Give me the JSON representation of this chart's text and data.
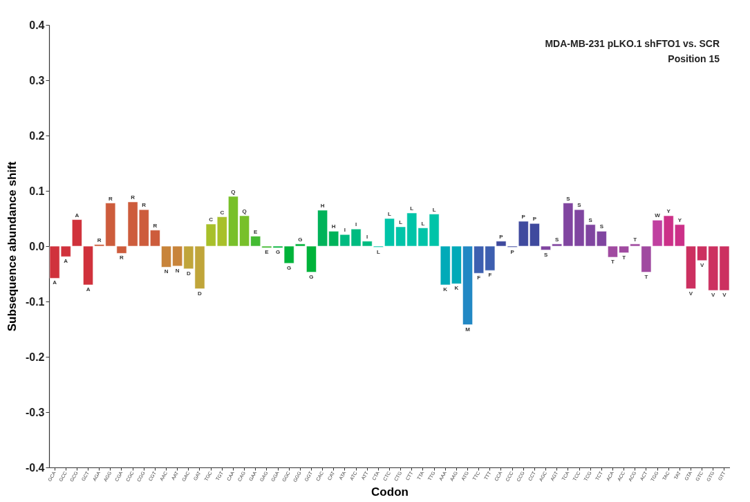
{
  "chart_data": {
    "type": "bar",
    "title": "MDA-MB-231 pLKO.1 shFTO1 vs. SCR",
    "subtitle": "Position 15",
    "xlabel": "Codon",
    "ylabel": "Subsequence abundance shift",
    "categories": [
      "GCA",
      "GCC",
      "GCG",
      "GCT",
      "AGA",
      "AGG",
      "CGA",
      "CGC",
      "CGG",
      "CGT",
      "AAC",
      "AAT",
      "GAC",
      "GAT",
      "TGC",
      "TGT",
      "CAA",
      "CAG",
      "GAA",
      "GAG",
      "GGA",
      "GGC",
      "GGG",
      "GGT",
      "CAC",
      "CAT",
      "ATA",
      "ATC",
      "ATT",
      "CTA",
      "CTC",
      "CTG",
      "CTT",
      "TTA",
      "TTG",
      "AAA",
      "AAG",
      "ATG",
      "TTC",
      "TTT",
      "CCA",
      "CCC",
      "CCG",
      "CCT",
      "AGC",
      "AGT",
      "TCA",
      "TCC",
      "TCG",
      "TCT",
      "ACA",
      "ACC",
      "ACG",
      "ACT",
      "TGG",
      "TAC",
      "TAT",
      "GTA",
      "GTC",
      "GTG",
      "GTT"
    ],
    "values": [
      -0.058,
      -0.019,
      0.048,
      -0.07,
      0.003,
      0.078,
      -0.013,
      0.08,
      0.066,
      0.029,
      -0.038,
      -0.036,
      -0.041,
      -0.077,
      0.04,
      0.053,
      0.09,
      0.055,
      0.018,
      -0.003,
      -0.003,
      -0.031,
      0.004,
      -0.047,
      0.065,
      0.027,
      0.021,
      0.031,
      0.009,
      -0.002,
      0.05,
      0.035,
      0.06,
      0.033,
      0.058,
      -0.07,
      -0.068,
      -0.142,
      -0.049,
      -0.044,
      0.009,
      -0.002,
      0.045,
      0.041,
      -0.007,
      0.004,
      0.078,
      0.066,
      0.039,
      0.027,
      -0.02,
      -0.012,
      0.004,
      -0.047,
      0.047,
      0.055,
      0.039,
      -0.077,
      -0.026,
      -0.08,
      -0.08
    ],
    "value_labels": [
      "A",
      "A",
      "A",
      "A",
      "R",
      "R",
      "R",
      "R",
      "R",
      "R",
      "N",
      "N",
      "D",
      "D",
      "C",
      "C",
      "Q",
      "Q",
      "E",
      "E",
      "G",
      "G",
      "G",
      "G",
      "H",
      "H",
      "I",
      "I",
      "I",
      "L",
      "L",
      "L",
      "L",
      "L",
      "L",
      "K",
      "K",
      "M",
      "F",
      "F",
      "P",
      "P",
      "P",
      "P",
      "S",
      "S",
      "S",
      "S",
      "S",
      "S",
      "T",
      "T",
      "T",
      "T",
      "W",
      "Y",
      "Y",
      "V",
      "V",
      "V",
      "V"
    ],
    "colors": [
      "#d0323c",
      "#d0323c",
      "#d0323c",
      "#d0323c",
      "#cd5c3c",
      "#cd5c3c",
      "#cd5c3c",
      "#cd5c3c",
      "#cd5c3c",
      "#cd5c3c",
      "#c8843a",
      "#c8843a",
      "#c0a53a",
      "#c0a53a",
      "#a8c02a",
      "#a8c02a",
      "#78c02a",
      "#78c02a",
      "#44bb33",
      "#44bb33",
      "#00b33a",
      "#00b33a",
      "#00b33a",
      "#00b33a",
      "#00b35a",
      "#00b35a",
      "#00bb80",
      "#00bb80",
      "#00bb80",
      "#00c4a8",
      "#00c4a8",
      "#00c4a8",
      "#00c4a8",
      "#00c4a8",
      "#00c4a8",
      "#00aab8",
      "#00aab8",
      "#2288c4",
      "#3d5fb0",
      "#3d5fb0",
      "#3f4a9e",
      "#3f4a9e",
      "#3f4a9e",
      "#3f4a9e",
      "#8045a0",
      "#8045a0",
      "#8045a0",
      "#8045a0",
      "#8045a0",
      "#8045a0",
      "#a04aa0",
      "#a04aa0",
      "#a04aa0",
      "#a04aa0",
      "#c040a0",
      "#cc3088",
      "#cc3088",
      "#cc3060",
      "#cc3060",
      "#cc3060",
      "#cc3060"
    ],
    "ylim": [
      -0.4,
      0.4
    ],
    "yticks": [
      -0.4,
      -0.3,
      -0.2,
      -0.1,
      {
        "value": 0,
        "label": "0.0"
      },
      0.1,
      0.2,
      0.3,
      0.4
    ],
    "grid": false
  }
}
